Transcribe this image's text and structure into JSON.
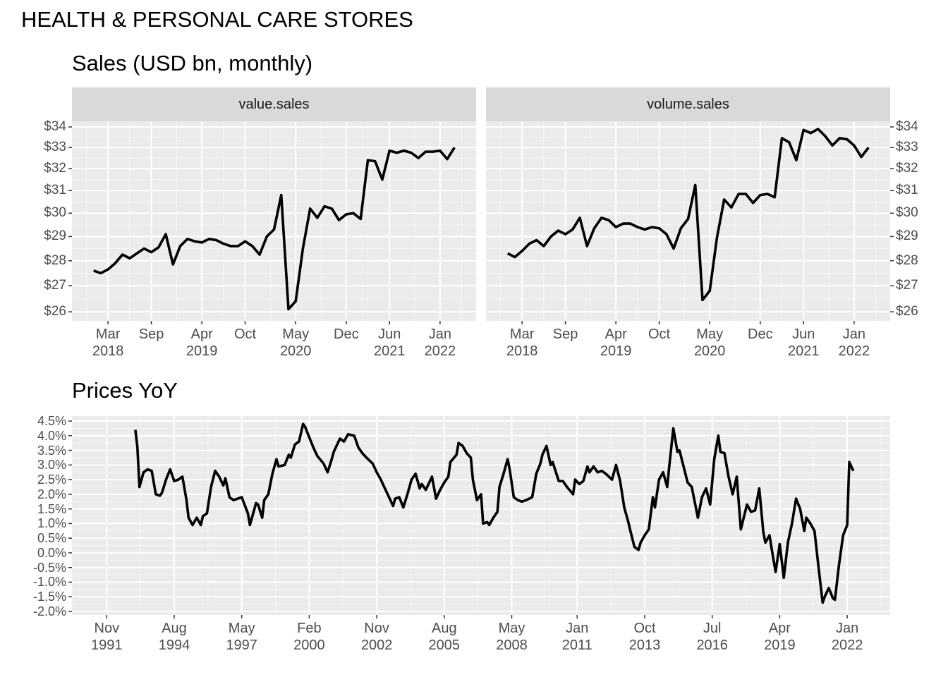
{
  "title": "HEALTH & PERSONAL CARE STORES",
  "chart_data": [
    {
      "type": "line",
      "title": "Sales (USD bn, monthly)",
      "facet": true,
      "log_scale": true,
      "grid": true,
      "x": [
        "2018-01",
        "2018-02",
        "2018-03",
        "2018-04",
        "2018-05",
        "2018-06",
        "2018-07",
        "2018-08",
        "2018-09",
        "2018-10",
        "2018-11",
        "2018-12",
        "2019-01",
        "2019-02",
        "2019-03",
        "2019-04",
        "2019-05",
        "2019-06",
        "2019-07",
        "2019-08",
        "2019-09",
        "2019-10",
        "2019-11",
        "2019-12",
        "2020-01",
        "2020-02",
        "2020-03",
        "2020-04",
        "2020-05",
        "2020-06",
        "2020-07",
        "2020-08",
        "2020-09",
        "2020-10",
        "2020-11",
        "2020-12",
        "2021-01",
        "2021-02",
        "2021-03",
        "2021-04",
        "2021-05",
        "2021-06",
        "2021-07",
        "2021-08",
        "2021-09",
        "2021-10",
        "2021-11",
        "2021-12",
        "2022-01",
        "2022-02",
        "2022-03"
      ],
      "xlim": [
        "2017-10",
        "2022-06"
      ],
      "xticks": [
        {
          "value": "2018-03",
          "label": "Mar\n2018"
        },
        {
          "value": "2018-09",
          "label": "Sep"
        },
        {
          "value": "2019-04",
          "label": "Apr\n2019"
        },
        {
          "value": "2019-10",
          "label": "Oct"
        },
        {
          "value": "2020-05",
          "label": "May\n2020"
        },
        {
          "value": "2020-12",
          "label": "Dec"
        },
        {
          "value": "2021-06",
          "label": "Jun\n2021"
        },
        {
          "value": "2022-01",
          "label": "Jan\n2022"
        }
      ],
      "ylim": [
        25.66,
        34.28
      ],
      "yticks": [
        {
          "value": 26,
          "label": "$26"
        },
        {
          "value": 27,
          "label": "$27"
        },
        {
          "value": 28,
          "label": "$28"
        },
        {
          "value": 29,
          "label": "$29"
        },
        {
          "value": 30,
          "label": "$30"
        },
        {
          "value": 31,
          "label": "$31"
        },
        {
          "value": 32,
          "label": "$32"
        },
        {
          "value": 33,
          "label": "$33"
        },
        {
          "value": 34,
          "label": "$34"
        }
      ],
      "series": [
        {
          "name": "value.sales",
          "color": "#000000",
          "values": [
            27.6,
            27.5,
            27.65,
            27.9,
            28.25,
            28.1,
            28.3,
            28.5,
            28.35,
            28.55,
            29.1,
            27.85,
            28.6,
            28.9,
            28.8,
            28.75,
            28.9,
            28.85,
            28.7,
            28.6,
            28.6,
            28.8,
            28.6,
            28.25,
            29.0,
            29.3,
            30.8,
            26.1,
            26.4,
            28.5,
            30.2,
            29.8,
            30.3,
            30.2,
            29.7,
            29.95,
            30.0,
            29.75,
            32.4,
            32.35,
            31.5,
            32.85,
            32.75,
            32.85,
            32.75,
            32.5,
            32.8,
            32.8,
            32.85,
            32.45,
            33.0
          ]
        },
        {
          "name": "volume.sales",
          "color": "#000000",
          "values": [
            28.3,
            28.15,
            28.4,
            28.7,
            28.85,
            28.6,
            29.0,
            29.25,
            29.1,
            29.3,
            29.8,
            28.6,
            29.35,
            29.8,
            29.7,
            29.4,
            29.55,
            29.55,
            29.4,
            29.3,
            29.4,
            29.35,
            29.1,
            28.5,
            29.35,
            29.75,
            31.25,
            26.45,
            26.8,
            28.95,
            30.6,
            30.25,
            30.85,
            30.85,
            30.45,
            30.8,
            30.85,
            30.7,
            33.45,
            33.25,
            32.4,
            33.85,
            33.7,
            33.9,
            33.55,
            33.1,
            33.45,
            33.4,
            33.1,
            32.55,
            33.0
          ]
        }
      ]
    },
    {
      "type": "line",
      "title": "Prices YoY",
      "log_scale": false,
      "grid": true,
      "color": "#000000",
      "x": [
        "1993-01",
        "1993-02",
        "1993-03",
        "1993-05",
        "1993-07",
        "1993-09",
        "1993-11",
        "1994-01",
        "1994-02",
        "1994-04",
        "1994-06",
        "1994-08",
        "1994-10",
        "1994-12",
        "1995-02",
        "1995-03",
        "1995-05",
        "1995-07",
        "1995-09",
        "1995-10",
        "1995-12",
        "1996-02",
        "1996-04",
        "1996-06",
        "1996-08",
        "1996-09",
        "1996-11",
        "1997-01",
        "1997-03",
        "1997-05",
        "1997-08",
        "1997-09",
        "1997-12",
        "1998-01",
        "1998-03",
        "1998-04",
        "1998-06",
        "1998-08",
        "1998-10",
        "1998-11",
        "1999-02",
        "1999-04",
        "1999-05",
        "1999-07",
        "1999-09",
        "1999-11",
        "1999-12",
        "2000-02",
        "2000-04",
        "2000-06",
        "2000-09",
        "2000-11",
        "2001-01",
        "2001-02",
        "2001-05",
        "2001-07",
        "2001-09",
        "2001-12",
        "2002-02",
        "2002-04",
        "2002-06",
        "2002-09",
        "2002-11",
        "2003-01",
        "2003-03",
        "2003-05",
        "2003-07",
        "2003-08",
        "2003-10",
        "2003-12",
        "2004-02",
        "2004-04",
        "2004-06",
        "2004-08",
        "2004-09",
        "2004-11",
        "2005-02",
        "2005-04",
        "2005-06",
        "2005-08",
        "2005-10",
        "2005-11",
        "2006-02",
        "2006-03",
        "2006-05",
        "2006-07",
        "2006-09",
        "2006-10",
        "2006-12",
        "2007-02",
        "2007-03",
        "2007-05",
        "2007-06",
        "2007-08",
        "2007-10",
        "2007-11",
        "2008-01",
        "2008-03",
        "2008-04",
        "2008-06",
        "2008-08",
        "2008-10",
        "2008-12",
        "2009-03",
        "2009-05",
        "2009-07",
        "2009-08",
        "2009-10",
        "2009-12",
        "2010-01",
        "2010-04",
        "2010-06",
        "2010-08",
        "2010-11",
        "2010-12",
        "2011-02",
        "2011-04",
        "2011-06",
        "2011-07",
        "2011-09",
        "2011-11",
        "2012-01",
        "2012-03",
        "2012-06",
        "2012-08",
        "2012-10",
        "2012-12",
        "2013-02",
        "2013-03",
        "2013-05",
        "2013-07",
        "2013-08",
        "2013-10",
        "2013-12",
        "2014-02",
        "2014-03",
        "2014-05",
        "2014-07",
        "2014-09",
        "2014-10",
        "2014-12",
        "2015-02",
        "2015-03",
        "2015-05",
        "2015-07",
        "2015-09",
        "2015-10",
        "2015-12",
        "2016-02",
        "2016-04",
        "2016-06",
        "2016-08",
        "2016-10",
        "2016-11",
        "2017-01",
        "2017-03",
        "2017-05",
        "2017-07",
        "2017-09",
        "2017-12",
        "2018-02",
        "2018-04",
        "2018-06",
        "2018-08",
        "2018-09",
        "2018-11",
        "2019-01",
        "2019-02",
        "2019-04",
        "2019-06",
        "2019-08",
        "2019-10",
        "2019-12",
        "2020-02",
        "2020-04",
        "2020-05",
        "2020-07",
        "2020-09",
        "2020-11",
        "2021-01",
        "2021-02",
        "2021-04",
        "2021-06",
        "2021-07",
        "2021-09",
        "2021-11",
        "2022-01",
        "2022-02",
        "2022-04"
      ],
      "values": [
        4.2,
        3.6,
        2.25,
        2.75,
        2.85,
        2.8,
        2.0,
        1.95,
        2.05,
        2.5,
        2.85,
        2.45,
        2.5,
        2.6,
        1.8,
        1.2,
        0.95,
        1.2,
        0.95,
        1.25,
        1.35,
        2.25,
        2.8,
        2.6,
        2.3,
        2.55,
        1.9,
        1.8,
        1.85,
        1.9,
        1.35,
        0.95,
        1.7,
        1.65,
        1.2,
        1.8,
        2.0,
        2.7,
        3.2,
        2.95,
        3.0,
        3.35,
        3.25,
        3.7,
        3.8,
        4.4,
        4.3,
        3.95,
        3.6,
        3.3,
        3.05,
        2.75,
        3.2,
        3.45,
        3.9,
        3.8,
        4.05,
        4.0,
        3.6,
        3.4,
        3.25,
        3.05,
        2.75,
        2.5,
        2.2,
        1.9,
        1.6,
        1.85,
        1.9,
        1.55,
        2.0,
        2.5,
        2.7,
        2.2,
        2.35,
        2.15,
        2.6,
        1.85,
        2.15,
        2.4,
        2.6,
        3.1,
        3.35,
        3.75,
        3.65,
        3.4,
        3.25,
        2.5,
        1.8,
        2.0,
        1.0,
        1.05,
        0.95,
        1.2,
        1.4,
        2.25,
        2.7,
        3.2,
        2.85,
        1.9,
        1.8,
        1.75,
        1.8,
        1.9,
        2.7,
        3.05,
        3.35,
        3.65,
        3.0,
        3.1,
        2.45,
        2.45,
        2.25,
        2.0,
        2.5,
        2.35,
        2.45,
        2.95,
        2.75,
        2.95,
        2.75,
        2.8,
        2.7,
        2.5,
        3.0,
        2.45,
        1.55,
        1.05,
        0.75,
        0.2,
        0.1,
        0.35,
        0.6,
        0.8,
        1.9,
        1.55,
        2.5,
        2.75,
        2.25,
        2.95,
        4.25,
        3.45,
        3.5,
        2.95,
        2.4,
        2.25,
        1.9,
        1.2,
        1.9,
        2.2,
        1.65,
        3.2,
        4.0,
        3.45,
        3.4,
        2.6,
        2.0,
        2.6,
        0.8,
        1.65,
        1.4,
        1.45,
        2.2,
        0.7,
        0.35,
        0.6,
        -0.25,
        -0.65,
        0.3,
        -0.85,
        0.35,
        1.0,
        1.85,
        1.5,
        0.75,
        1.2,
        1.0,
        0.75,
        -0.5,
        -1.7,
        -1.5,
        -1.2,
        -1.55,
        -1.6,
        -0.4,
        0.6,
        0.95,
        3.1,
        2.8
      ],
      "xlim": [
        "1990-06",
        "2023-10"
      ],
      "xticks": [
        {
          "value": "1991-11",
          "label": "Nov\n1991"
        },
        {
          "value": "1994-08",
          "label": "Aug\n1994"
        },
        {
          "value": "1997-05",
          "label": "May\n1997"
        },
        {
          "value": "2000-02",
          "label": "Feb\n2000"
        },
        {
          "value": "2002-11",
          "label": "Nov\n2002"
        },
        {
          "value": "2005-08",
          "label": "Aug\n2005"
        },
        {
          "value": "2008-05",
          "label": "May\n2008"
        },
        {
          "value": "2011-01",
          "label": "Jan\n2011"
        },
        {
          "value": "2013-10",
          "label": "Oct\n2013"
        },
        {
          "value": "2016-07",
          "label": "Jul\n2016"
        },
        {
          "value": "2019-04",
          "label": "Apr\n2019"
        },
        {
          "value": "2022-01",
          "label": "Jan\n2022"
        }
      ],
      "ylim": [
        -2.12,
        4.67
      ],
      "yticks": [
        {
          "value": 4.5,
          "label": "4.5%"
        },
        {
          "value": 4.0,
          "label": "4.0%"
        },
        {
          "value": 3.5,
          "label": "3.5%"
        },
        {
          "value": 3.0,
          "label": "3.0%"
        },
        {
          "value": 2.5,
          "label": "2.5%"
        },
        {
          "value": 2.0,
          "label": "2.0%"
        },
        {
          "value": 1.5,
          "label": "1.5%"
        },
        {
          "value": 1.0,
          "label": "1.0%"
        },
        {
          "value": 0.5,
          "label": "0.5%"
        },
        {
          "value": 0,
          "label": "0.0%"
        },
        {
          "value": -0.5,
          "label": "-0.5%"
        },
        {
          "value": -1.0,
          "label": "-1.0%"
        },
        {
          "value": -1.5,
          "label": "-1.5%"
        },
        {
          "value": -2.0,
          "label": "-2.0%"
        }
      ]
    }
  ]
}
